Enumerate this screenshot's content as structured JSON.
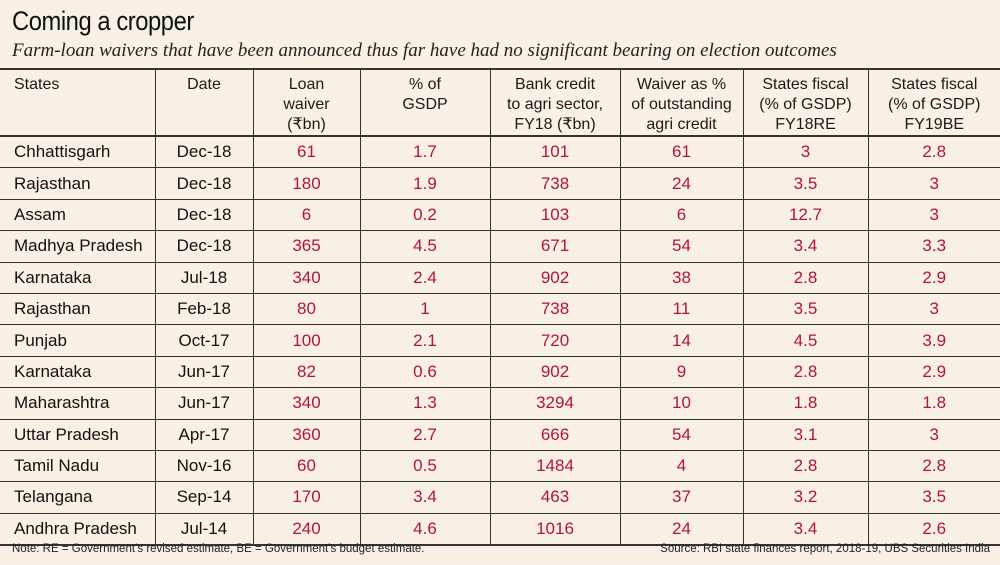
{
  "chart_data": {
    "type": "table",
    "title": "Coming a cropper",
    "subtitle": "Farm-loan waivers that have been announced thus far have had no significant bearing on election outcomes",
    "columns": [
      [
        "States"
      ],
      [
        "Date"
      ],
      [
        "Loan",
        "waiver",
        "(₹bn)"
      ],
      [
        "% of",
        "GSDP"
      ],
      [
        "Bank credit",
        "to agri sector,",
        "FY18 (₹bn)"
      ],
      [
        "Waiver as %",
        "of outstanding",
        "agri credit"
      ],
      [
        "States fiscal",
        "(% of GSDP)",
        "FY18RE"
      ],
      [
        "States fiscal",
        "(% of GSDP)",
        "FY19BE"
      ]
    ],
    "rows": [
      [
        "Chhattisgarh",
        "Dec-18",
        "61",
        "1.7",
        "101",
        "61",
        "3",
        "2.8"
      ],
      [
        "Rajasthan",
        "Dec-18",
        "180",
        "1.9",
        "738",
        "24",
        "3.5",
        "3"
      ],
      [
        "Assam",
        "Dec-18",
        "6",
        "0.2",
        "103",
        "6",
        "12.7",
        "3"
      ],
      [
        "Madhya Pradesh",
        "Dec-18",
        "365",
        "4.5",
        "671",
        "54",
        "3.4",
        "3.3"
      ],
      [
        "Karnataka",
        "Jul-18",
        "340",
        "2.4",
        "902",
        "38",
        "2.8",
        "2.9"
      ],
      [
        "Rajasthan",
        "Feb-18",
        "80",
        "1",
        "738",
        "11",
        "3.5",
        "3"
      ],
      [
        "Punjab",
        "Oct-17",
        "100",
        "2.1",
        "720",
        "14",
        "4.5",
        "3.9"
      ],
      [
        "Karnataka",
        "Jun-17",
        "82",
        "0.6",
        "902",
        "9",
        "2.8",
        "2.9"
      ],
      [
        "Maharashtra",
        "Jun-17",
        "340",
        "1.3",
        "3294",
        "10",
        "1.8",
        "1.8"
      ],
      [
        "Uttar Pradesh",
        "Apr-17",
        "360",
        "2.7",
        "666",
        "54",
        "3.1",
        "3"
      ],
      [
        "Tamil Nadu",
        "Nov-16",
        "60",
        "0.5",
        "1484",
        "4",
        "2.8",
        "2.8"
      ],
      [
        "Telangana",
        "Sep-14",
        "170",
        "3.4",
        "463",
        "37",
        "3.2",
        "3.5"
      ],
      [
        "Andhra Pradesh",
        "Jul-14",
        "240",
        "4.6",
        "1016",
        "24",
        "3.4",
        "2.6"
      ]
    ],
    "note": "Note: RE = Government’s revised estimate, BE = Government’s budget estimate.",
    "source": "Source: RBI state finances report, 2018-19, UBS Securities India"
  },
  "colors": {
    "background": "#f8f0e4",
    "value_text": "#b3143a",
    "label_text": "#111111",
    "rule": "#333333"
  }
}
